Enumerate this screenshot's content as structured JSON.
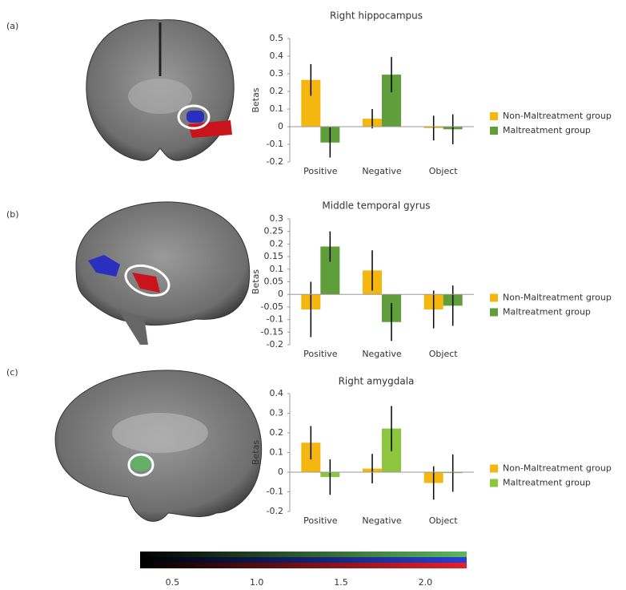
{
  "panel_labels": [
    "(a)",
    "(b)",
    "(c)"
  ],
  "colorbar": {
    "ticks": [
      {
        "value": 0.5,
        "label": "0.5"
      },
      {
        "value": 1,
        "label": "1.0"
      },
      {
        "value": 1.5,
        "label": "1.5"
      },
      {
        "value": 2,
        "label": "2.0"
      }
    ]
  },
  "chart_data": [
    {
      "type": "bar",
      "title": "Right hippocampus",
      "ylabel": "Betas",
      "categories": [
        "Positive",
        "Negative",
        "Object"
      ],
      "series": [
        {
          "name": "Non-Maltreatment group",
          "color": "#f5b70f",
          "values": [
            0.265,
            0.045,
            -0.008
          ],
          "errors": [
            0.09,
            0.055,
            0.07
          ]
        },
        {
          "name": "Maltreatment group",
          "color": "#5f9e3a",
          "values": [
            -0.09,
            0.295,
            -0.015
          ],
          "errors": [
            0.085,
            0.1,
            0.085
          ]
        }
      ],
      "ylim": [
        -0.2,
        0.5
      ],
      "yticks": [
        -0.2,
        -0.1,
        0,
        0.1,
        0.2,
        0.3,
        0.4,
        0.5
      ],
      "legend": "right"
    },
    {
      "type": "bar",
      "title": "Middle temporal gyrus",
      "ylabel": "Betas",
      "categories": [
        "Positive",
        "Negative",
        "Object"
      ],
      "series": [
        {
          "name": "Non-Maltreatment group",
          "color": "#f5b70f",
          "values": [
            -0.06,
            0.095,
            -0.06
          ],
          "errors": [
            0.11,
            0.08,
            0.075
          ]
        },
        {
          "name": "Maltreatment group",
          "color": "#5f9e3a",
          "values": [
            0.19,
            -0.11,
            -0.045
          ],
          "errors": [
            0.06,
            0.075,
            0.08
          ]
        }
      ],
      "ylim": [
        -0.2,
        0.3
      ],
      "yticks": [
        -0.2,
        -0.15,
        -0.1,
        -0.05,
        0,
        0.05,
        0.1,
        0.15,
        0.2,
        0.25,
        0.3
      ],
      "legend": "right"
    },
    {
      "type": "bar",
      "title": "Right amygdala",
      "ylabel": "Betas",
      "categories": [
        "Positive",
        "Negative",
        "Object"
      ],
      "series": [
        {
          "name": "Non-Maltreatment group",
          "color": "#f5b70f",
          "values": [
            0.15,
            0.018,
            -0.055
          ],
          "errors": [
            0.085,
            0.075,
            0.085
          ]
        },
        {
          "name": "Maltreatment group",
          "color": "#8cc63f",
          "values": [
            -0.025,
            0.222,
            -0.005
          ],
          "errors": [
            0.09,
            0.115,
            0.095
          ]
        }
      ],
      "ylim": [
        -0.2,
        0.4
      ],
      "yticks": [
        -0.2,
        -0.1,
        0,
        0.1,
        0.2,
        0.3,
        0.4
      ],
      "legend": "right"
    }
  ]
}
